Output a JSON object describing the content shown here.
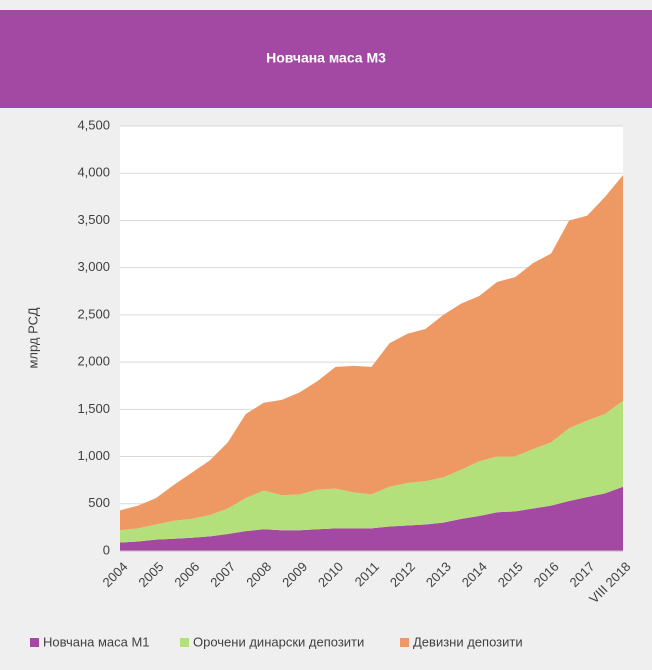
{
  "chart_data": {
    "type": "stacked_area",
    "title": "Новчана маса М3",
    "y_label": "млрд РСД",
    "categories": [
      "2004",
      null,
      "2005",
      null,
      "2006",
      null,
      "2007",
      null,
      "2008",
      null,
      "2009",
      null,
      "2010",
      null,
      "2011",
      null,
      "2012",
      null,
      "2013",
      null,
      "2014",
      null,
      "2015",
      null,
      "2016",
      null,
      "2017",
      null,
      "VIII 2018"
    ],
    "series": [
      {
        "name": "Новчана маса М1",
        "color": "#a349a4",
        "values": [
          90,
          100,
          120,
          130,
          140,
          155,
          180,
          210,
          230,
          220,
          220,
          230,
          240,
          240,
          240,
          260,
          270,
          280,
          300,
          340,
          370,
          410,
          420,
          450,
          480,
          530,
          570,
          610,
          680
        ]
      },
      {
        "name": "Орочени динарски депозити",
        "color": "#b3e07a",
        "values": [
          130,
          140,
          160,
          190,
          200,
          225,
          270,
          350,
          410,
          370,
          380,
          420,
          420,
          380,
          360,
          420,
          450,
          460,
          480,
          520,
          580,
          590,
          580,
          630,
          670,
          770,
          810,
          840,
          910
        ]
      },
      {
        "name": "Девизни депозити",
        "color": "#ee9964",
        "values": [
          210,
          240,
          280,
          380,
          490,
          580,
          700,
          890,
          930,
          1010,
          1080,
          1150,
          1290,
          1340,
          1350,
          1520,
          1580,
          1610,
          1720,
          1760,
          1750,
          1850,
          1900,
          1970,
          2000,
          2200,
          2170,
          2300,
          2390
        ]
      }
    ],
    "ylim": [
      0,
      4500
    ],
    "yticks": [
      0,
      500,
      {
        "value": 1000,
        "label": "1,000"
      },
      {
        "value": 1500,
        "label": "1,500"
      },
      {
        "value": 2000,
        "label": "2,000"
      },
      {
        "value": 2500,
        "label": "2,500"
      },
      {
        "value": 3000,
        "label": "3,000"
      },
      {
        "value": 3500,
        "label": "3,500"
      },
      {
        "value": 4000,
        "label": "4,000"
      },
      {
        "value": 4500,
        "label": "4,500"
      }
    ],
    "grid": true,
    "legend": "bottom"
  }
}
